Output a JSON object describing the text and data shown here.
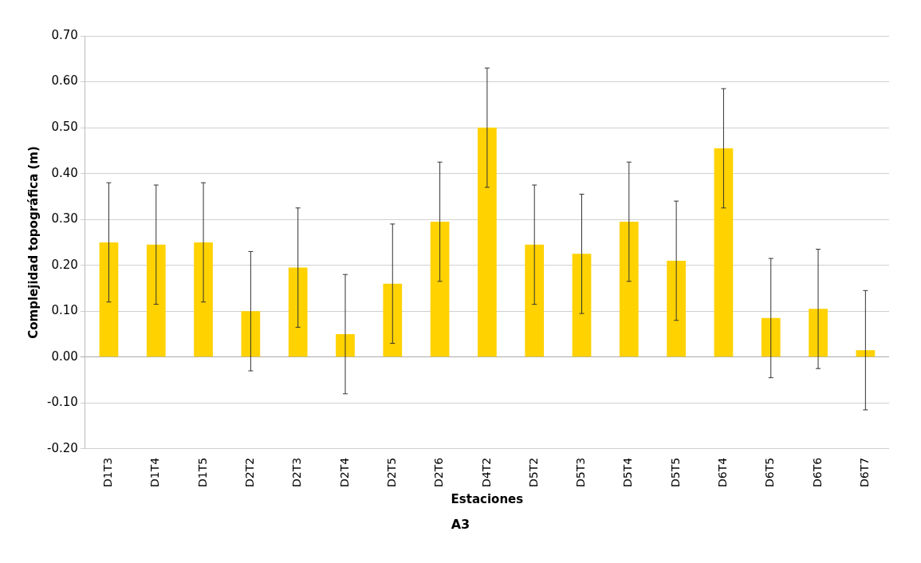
{
  "chart_data": {
    "type": "bar",
    "categories": [
      "D1T3",
      "D1T4",
      "D1T5",
      "D2T2",
      "D2T3",
      "D2T4",
      "D2T5",
      "D2T6",
      "D4T2",
      "D5T2",
      "D5T3",
      "D5T4",
      "D5T5",
      "D6T4",
      "D6T5",
      "D6T6",
      "D6T7"
    ],
    "values": [
      0.25,
      0.245,
      0.25,
      0.1,
      0.195,
      0.05,
      0.16,
      0.295,
      0.5,
      0.245,
      0.225,
      0.295,
      0.21,
      0.455,
      0.085,
      0.105,
      0.015
    ],
    "errors": [
      0.13,
      0.13,
      0.13,
      0.13,
      0.13,
      0.13,
      0.13,
      0.13,
      0.13,
      0.13,
      0.13,
      0.13,
      0.13,
      0.13,
      0.13,
      0.13,
      0.13
    ],
    "color": "#ffd200",
    "xlabel": "Estaciones",
    "ylabel": "Complejidad topográfica (m)",
    "annotations": [
      "A3"
    ],
    "ylim": [
      -0.2,
      0.7
    ],
    "yticks": [
      {
        "value": -0.2,
        "label": "-0.20"
      },
      {
        "value": -0.1,
        "label": "-0.10"
      },
      {
        "value": 0,
        "label": "0.00"
      },
      {
        "value": 0.1,
        "label": "0.10"
      },
      {
        "value": 0.2,
        "label": "0.20"
      },
      {
        "value": 0.3,
        "label": "0.30"
      },
      {
        "value": 0.4,
        "label": "0.40"
      },
      {
        "value": 0.5,
        "label": "0.50"
      },
      {
        "value": 0.6,
        "label": "0.60"
      },
      {
        "value": 0.7,
        "label": "0.70"
      }
    ],
    "grid": "y",
    "legend": false
  }
}
